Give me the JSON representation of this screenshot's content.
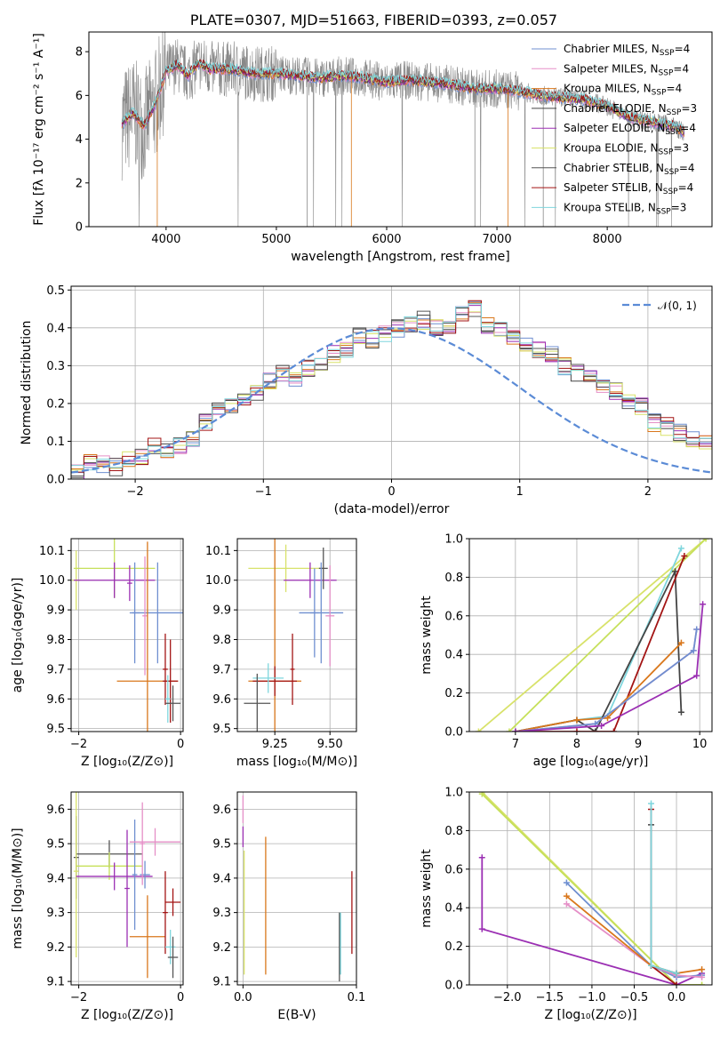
{
  "colors": {
    "chabrier_miles": "#6f8fd0",
    "salpeter_miles": "#e58fc7",
    "kroupa_miles": "#d9771c",
    "chabrier_elodie": "#444444",
    "salpeter_elodie": "#9b2fb3",
    "kroupa_elodie": "#d8e26a",
    "chabrier_stelib": "#555555",
    "salpeter_stelib": "#a31414",
    "kroupa_stelib": "#7fd6dd",
    "data": "#888888",
    "normal": "#5b8bd6",
    "lime": "#c6e05a"
  },
  "chart_data": [
    {
      "id": "spectrum",
      "type": "line",
      "title": "PLATE=0307, MJD=51663, FIBERID=0393, z=0.057",
      "xlabel": "wavelength [Angstrom, rest frame]",
      "ylabel": "Flux [fλ 10⁻¹⁷ erg cm⁻² s⁻¹ A⁻¹]",
      "xlim": [
        3300,
        8950
      ],
      "ylim": [
        0,
        8.9
      ],
      "xticks": [
        4000,
        5000,
        6000,
        7000,
        8000
      ],
      "yticks": [
        0,
        2,
        4,
        6,
        8
      ],
      "grid": false,
      "legend_position": "top-right",
      "legend": [
        {
          "label": "Chabrier MILES, N",
          "sub": "SSP",
          "eq": "=4",
          "color": "#6f8fd0"
        },
        {
          "label": "Salpeter MILES, N",
          "sub": "SSP",
          "eq": "=4",
          "color": "#e58fc7"
        },
        {
          "label": "Kroupa MILES, N",
          "sub": "SSP",
          "eq": "=4",
          "color": "#d9771c"
        },
        {
          "label": "Chabrier ELODIE, N",
          "sub": "SSP",
          "eq": "=3",
          "color": "#444444"
        },
        {
          "label": "Salpeter ELODIE, N",
          "sub": "SSP",
          "eq": "=4",
          "color": "#9b2fb3"
        },
        {
          "label": "Kroupa ELODIE, N",
          "sub": "SSP",
          "eq": "=3",
          "color": "#d8e26a"
        },
        {
          "label": "Chabrier STELIB, N",
          "sub": "SSP",
          "eq": "=4",
          "color": "#555555"
        },
        {
          "label": "Salpeter STELIB, N",
          "sub": "SSP",
          "eq": "=4",
          "color": "#a31414"
        },
        {
          "label": "Kroupa STELIB, N",
          "sub": "SSP",
          "eq": "=3",
          "color": "#7fd6dd"
        }
      ],
      "continuum_model": {
        "x": [
          3600,
          3700,
          3800,
          3900,
          4000,
          4100,
          4200,
          4300,
          4400,
          4600,
          4800,
          5000,
          5200,
          5400,
          5600,
          5800,
          6000,
          6200,
          6400,
          6600,
          6800,
          7000,
          7200,
          7400,
          7600,
          7800,
          8000,
          8200,
          8400,
          8600,
          8700
        ],
        "y": [
          4.7,
          5.2,
          4.6,
          5.6,
          7.1,
          7.4,
          6.9,
          7.5,
          7.2,
          7.2,
          7.0,
          7.0,
          6.9,
          6.8,
          6.9,
          6.8,
          6.6,
          6.7,
          6.6,
          6.5,
          6.3,
          6.3,
          6.2,
          6.0,
          5.9,
          5.8,
          5.5,
          5.0,
          4.8,
          4.6,
          4.3
        ]
      }
    },
    {
      "id": "residuals",
      "type": "bar",
      "xlabel": "(data-model)/error",
      "ylabel": "Normed distribution",
      "xlim": [
        -2.5,
        2.5
      ],
      "ylim": [
        0,
        0.51
      ],
      "xticks": [
        -2,
        -1,
        0,
        1,
        2
      ],
      "yticks": [
        0.0,
        0.1,
        0.2,
        0.3,
        0.4,
        0.5
      ],
      "grid": true,
      "legend_position": "top-right",
      "legend_label": "𝒩(0, 1)",
      "bin_edges_start": -2.6,
      "bin_width": 0.1,
      "hist_values": [
        0.02,
        0.02,
        0.04,
        0.04,
        0.03,
        0.05,
        0.06,
        0.09,
        0.07,
        0.09,
        0.11,
        0.15,
        0.19,
        0.19,
        0.21,
        0.23,
        0.26,
        0.28,
        0.26,
        0.29,
        0.3,
        0.33,
        0.34,
        0.38,
        0.37,
        0.38,
        0.4,
        0.41,
        0.42,
        0.4,
        0.41,
        0.44,
        0.45,
        0.41,
        0.4,
        0.37,
        0.35,
        0.34,
        0.33,
        0.3,
        0.28,
        0.27,
        0.24,
        0.23,
        0.21,
        0.19,
        0.15,
        0.14,
        0.12,
        0.11,
        0.1,
        0.08,
        0.07,
        0.07,
        0.06,
        0.05,
        0.04,
        0.04,
        0.03,
        0.03,
        0.03,
        0.03,
        0.03
      ]
    },
    {
      "id": "age_vs_Z",
      "type": "scatter",
      "xlabel": "Z [log₁₀(Z/Z⊙)]",
      "ylabel": "age  [log₁₀(age/yr)]",
      "xlim": [
        -2.15,
        0.05
      ],
      "ylim": [
        9.49,
        10.14
      ],
      "xticks": [
        -2,
        0
      ],
      "yticks": [
        9.5,
        9.6,
        9.7,
        9.8,
        9.9,
        10.0,
        10.1
      ],
      "grid": true,
      "points": [
        {
          "x": -2.05,
          "y": 10.0,
          "xerr": 0.08,
          "yerr": 0.1,
          "color": "#d8e26a"
        },
        {
          "x": -1.3,
          "y": 10.04,
          "xerr": 0.8,
          "yerr": 0.1,
          "color": "#c6e05a"
        },
        {
          "x": -1.3,
          "y": 10.0,
          "xerr": 0.8,
          "yerr": 0.06,
          "color": "#9b2fb3"
        },
        {
          "x": -1.0,
          "y": 9.99,
          "xerr": 0.05,
          "yerr": 0.06,
          "color": "#9b2fb3"
        },
        {
          "x": -0.9,
          "y": 9.89,
          "xerr": 0.1,
          "yerr": 0.17,
          "color": "#6f8fd0"
        },
        {
          "x": -0.45,
          "y": 9.89,
          "xerr": 0.5,
          "yerr": 0.17,
          "color": "#6f8fd0"
        },
        {
          "x": -0.7,
          "y": 9.88,
          "xerr": 0.05,
          "yerr": 0.2,
          "color": "#e58fc7"
        },
        {
          "x": -0.65,
          "y": 9.66,
          "xerr": 0.6,
          "yerr": 0.47,
          "color": "#d9771c"
        },
        {
          "x": -0.3,
          "y": 9.7,
          "xerr": 0.05,
          "yerr": 0.12,
          "color": "#a31414"
        },
        {
          "x": -0.2,
          "y": 9.66,
          "xerr": 0.15,
          "yerr": 0.14,
          "color": "#a31414"
        },
        {
          "x": -0.25,
          "y": 9.6,
          "xerr": 0.05,
          "yerr": 0.08,
          "color": "#7fd6dd"
        },
        {
          "x": -0.15,
          "y": 9.585,
          "xerr": 0.15,
          "yerr": 0.06,
          "color": "#555555"
        }
      ]
    },
    {
      "id": "age_vs_mass",
      "type": "scatter",
      "xlabel": "mass [log₁₀(M/M⊙)]",
      "ylabel": "",
      "xlim": [
        9.08,
        9.62
      ],
      "ylim": [
        9.49,
        10.14
      ],
      "xticks": [
        9.25,
        9.5
      ],
      "yticks": [
        9.5,
        9.6,
        9.7,
        9.8,
        9.9,
        10.0,
        10.1
      ],
      "grid": true,
      "points": [
        {
          "x": 9.3,
          "y": 10.04,
          "xerr": 0.17,
          "yerr": 0.08,
          "color": "#d8e26a"
        },
        {
          "x": 9.41,
          "y": 10.0,
          "xerr": 0.12,
          "yerr": 0.06,
          "color": "#9b2fb3"
        },
        {
          "x": 9.47,
          "y": 10.04,
          "xerr": 0.02,
          "yerr": 0.07,
          "color": "#555555"
        },
        {
          "x": 9.43,
          "y": 9.89,
          "xerr": 0.02,
          "yerr": 0.15,
          "color": "#6f8fd0"
        },
        {
          "x": 9.46,
          "y": 9.89,
          "xerr": 0.1,
          "yerr": 0.17,
          "color": "#6f8fd0"
        },
        {
          "x": 9.5,
          "y": 9.88,
          "xerr": 0.02,
          "yerr": 0.17,
          "color": "#e58fc7"
        },
        {
          "x": 9.25,
          "y": 9.66,
          "xerr": 0.12,
          "yerr": 0.48,
          "color": "#d9771c"
        },
        {
          "x": 9.25,
          "y": 9.66,
          "xerr": 0.1,
          "yerr": 0.05,
          "color": "#a31414"
        },
        {
          "x": 9.33,
          "y": 9.7,
          "xerr": 0.01,
          "yerr": 0.12,
          "color": "#a31414"
        },
        {
          "x": 9.22,
          "y": 9.67,
          "xerr": 0.07,
          "yerr": 0.05,
          "color": "#7fd6dd"
        },
        {
          "x": 9.17,
          "y": 9.585,
          "xerr": 0.06,
          "yerr": 0.1,
          "color": "#555555"
        }
      ]
    },
    {
      "id": "mass_weight_vs_age",
      "type": "line",
      "xlabel": "age  [log₁₀(age/yr)]",
      "ylabel": "mass weight",
      "xlim": [
        6.25,
        10.2
      ],
      "ylim": [
        0,
        1.0
      ],
      "xticks": [
        7,
        8,
        9,
        10
      ],
      "yticks": [
        0.0,
        0.2,
        0.4,
        0.6,
        0.8,
        1.0
      ],
      "grid": true,
      "series": [
        {
          "x": [
            6.4,
            10.1
          ],
          "y": [
            0,
            1.0
          ],
          "color": "#d8e26a"
        },
        {
          "x": [
            6.9,
            10.1
          ],
          "y": [
            0,
            1.0
          ],
          "color": "#c6e05a"
        },
        {
          "x": [
            7.0,
            8.0,
            8.5,
            9.7
          ],
          "y": [
            0,
            0.06,
            0.08,
            0.95
          ],
          "color": "#7fd6dd"
        },
        {
          "x": [
            7.0,
            8.0,
            8.3,
            9.6,
            9.7
          ],
          "y": [
            0,
            0.06,
            0.0,
            0.83,
            0.1
          ],
          "color": "#444444"
        },
        {
          "x": [
            7.0,
            8.0,
            8.6,
            9.75
          ],
          "y": [
            0,
            0.0,
            0.0,
            0.91
          ],
          "color": "#a31414"
        },
        {
          "x": [
            7.0,
            8.0,
            8.5,
            9.7
          ],
          "y": [
            0,
            0.06,
            0.07,
            0.46
          ],
          "color": "#d9771c"
        },
        {
          "x": [
            7.0,
            8.3,
            9.9,
            9.95
          ],
          "y": [
            0,
            0.04,
            0.42,
            0.53
          ],
          "color": "#e58fc7"
        },
        {
          "x": [
            7.0,
            8.3,
            9.9,
            9.95
          ],
          "y": [
            0,
            0.04,
            0.42,
            0.53
          ],
          "color": "#6f8fd0"
        },
        {
          "x": [
            7.0,
            8.4,
            9.95,
            10.05
          ],
          "y": [
            0,
            0.03,
            0.29,
            0.66
          ],
          "color": "#9b2fb3"
        }
      ]
    },
    {
      "id": "mass_vs_Z",
      "type": "scatter",
      "xlabel": "Z [log₁₀(Z/Z⊙)]",
      "ylabel": "mass [log₁₀(M/M⊙)]",
      "xlim": [
        -2.15,
        0.05
      ],
      "ylim": [
        9.09,
        9.65
      ],
      "xticks": [
        -2,
        0
      ],
      "yticks": [
        9.1,
        9.2,
        9.3,
        9.4,
        9.5,
        9.6
      ],
      "grid": true,
      "points": [
        {
          "x": -2.05,
          "y": 9.46,
          "xerr": 0.05,
          "yerr": 0.12,
          "color": "#555555"
        },
        {
          "x": -1.4,
          "y": 9.47,
          "xerr": 0.65,
          "yerr": 0.04,
          "color": "#555555"
        },
        {
          "x": -2.05,
          "y": 9.42,
          "xerr": 0.05,
          "yerr": 0.25,
          "color": "#d8e26a"
        },
        {
          "x": -1.4,
          "y": 9.435,
          "xerr": 0.65,
          "yerr": 0.04,
          "color": "#c6e05a"
        },
        {
          "x": -1.3,
          "y": 9.405,
          "xerr": 0.75,
          "yerr": 0.04,
          "color": "#9b2fb3"
        },
        {
          "x": -1.05,
          "y": 9.37,
          "xerr": 0.05,
          "yerr": 0.17,
          "color": "#9b2fb3"
        },
        {
          "x": -0.9,
          "y": 9.41,
          "xerr": 0.05,
          "yerr": 0.16,
          "color": "#6f8fd0"
        },
        {
          "x": -0.7,
          "y": 9.41,
          "xerr": 0.1,
          "yerr": 0.04,
          "color": "#6f8fd0"
        },
        {
          "x": -0.5,
          "y": 9.505,
          "xerr": 0.5,
          "yerr": 0.04,
          "color": "#e58fc7"
        },
        {
          "x": -0.75,
          "y": 9.5,
          "xerr": 0.05,
          "yerr": 0.12,
          "color": "#e58fc7"
        },
        {
          "x": -0.65,
          "y": 9.23,
          "xerr": 0.35,
          "yerr": 0.12,
          "color": "#d9771c"
        },
        {
          "x": -0.3,
          "y": 9.3,
          "xerr": 0.05,
          "yerr": 0.12,
          "color": "#a31414"
        },
        {
          "x": -0.15,
          "y": 9.33,
          "xerr": 0.15,
          "yerr": 0.04,
          "color": "#a31414"
        },
        {
          "x": -0.2,
          "y": 9.2,
          "xerr": 0.1,
          "yerr": 0.05,
          "color": "#7fd6dd"
        },
        {
          "x": -0.15,
          "y": 9.17,
          "xerr": 0.1,
          "yerr": 0.06,
          "color": "#555555"
        }
      ]
    },
    {
      "id": "mass_vs_EBV",
      "type": "scatter",
      "xlabel": "E(B-V)",
      "ylabel": "",
      "xlim": [
        -0.005,
        0.1
      ],
      "ylim": [
        9.09,
        9.65
      ],
      "xticks": [
        0.0,
        0.1
      ],
      "yticks": [
        9.1,
        9.2,
        9.3,
        9.4,
        9.5,
        9.6
      ],
      "grid": true,
      "points": [
        {
          "x": 0.0,
          "y": 9.6,
          "xerr": 0.0,
          "yerr": 0.04,
          "color": "#e58fc7"
        },
        {
          "x": 0.0,
          "y": 9.52,
          "xerr": 0.0,
          "yerr": 0.03,
          "color": "#9b2fb3"
        },
        {
          "x": 0.001,
          "y": 9.3,
          "xerr": 0.0,
          "yerr": 0.18,
          "color": "#d8e26a"
        },
        {
          "x": 0.02,
          "y": 9.32,
          "xerr": 0.0,
          "yerr": 0.2,
          "color": "#d9771c"
        },
        {
          "x": 0.085,
          "y": 9.2,
          "xerr": 0.0,
          "yerr": 0.1,
          "color": "#555555"
        },
        {
          "x": 0.086,
          "y": 9.21,
          "xerr": 0.0,
          "yerr": 0.09,
          "color": "#7fd6dd"
        },
        {
          "x": 0.096,
          "y": 9.3,
          "xerr": 0.0,
          "yerr": 0.12,
          "color": "#a31414"
        }
      ]
    },
    {
      "id": "mass_weight_vs_Z",
      "type": "line",
      "xlabel": "Z [log₁₀(Z/Z⊙)]",
      "ylabel": "mass weight",
      "xlim": [
        -2.45,
        0.42
      ],
      "ylim": [
        0,
        1.0
      ],
      "xticks": [
        -2.0,
        -1.5,
        -1.0,
        -0.5,
        0.0
      ],
      "yticks": [
        0.0,
        0.2,
        0.4,
        0.6,
        0.8,
        1.0
      ],
      "grid": true,
      "series": [
        {
          "x": [
            -2.3,
            0.0,
            0.3
          ],
          "y": [
            1.0,
            0.0,
            0.0
          ],
          "color": "#d8e26a"
        },
        {
          "x": [
            -2.3,
            0.0,
            0.3
          ],
          "y": [
            0.99,
            0.0,
            0.0
          ],
          "color": "#c6e05a"
        },
        {
          "x": [
            -2.3,
            -2.3,
            0.0,
            0.3
          ],
          "y": [
            0.66,
            0.29,
            0.0,
            0.06
          ],
          "color": "#9b2fb3"
        },
        {
          "x": [
            -1.3,
            -0.3,
            0.0,
            0.3
          ],
          "y": [
            0.53,
            0.1,
            0.04,
            0.05
          ],
          "color": "#6f8fd0"
        },
        {
          "x": [
            -1.3,
            -0.3,
            0.0,
            0.3
          ],
          "y": [
            0.42,
            0.1,
            0.05,
            0.04
          ],
          "color": "#e58fc7"
        },
        {
          "x": [
            -1.3,
            -0.3,
            0.0,
            0.3
          ],
          "y": [
            0.46,
            0.1,
            0.06,
            0.08
          ],
          "color": "#d9771c"
        },
        {
          "x": [
            -0.3,
            -0.3,
            0.0
          ],
          "y": [
            0.83,
            0.1,
            0.06
          ],
          "color": "#444444"
        },
        {
          "x": [
            -0.3,
            -0.3,
            0.0
          ],
          "y": [
            0.91,
            0.1,
            0.0
          ],
          "color": "#a31414"
        },
        {
          "x": [
            -0.3,
            -0.3,
            0.0
          ],
          "y": [
            0.94,
            0.1,
            0.06
          ],
          "color": "#7fd6dd"
        }
      ]
    }
  ]
}
